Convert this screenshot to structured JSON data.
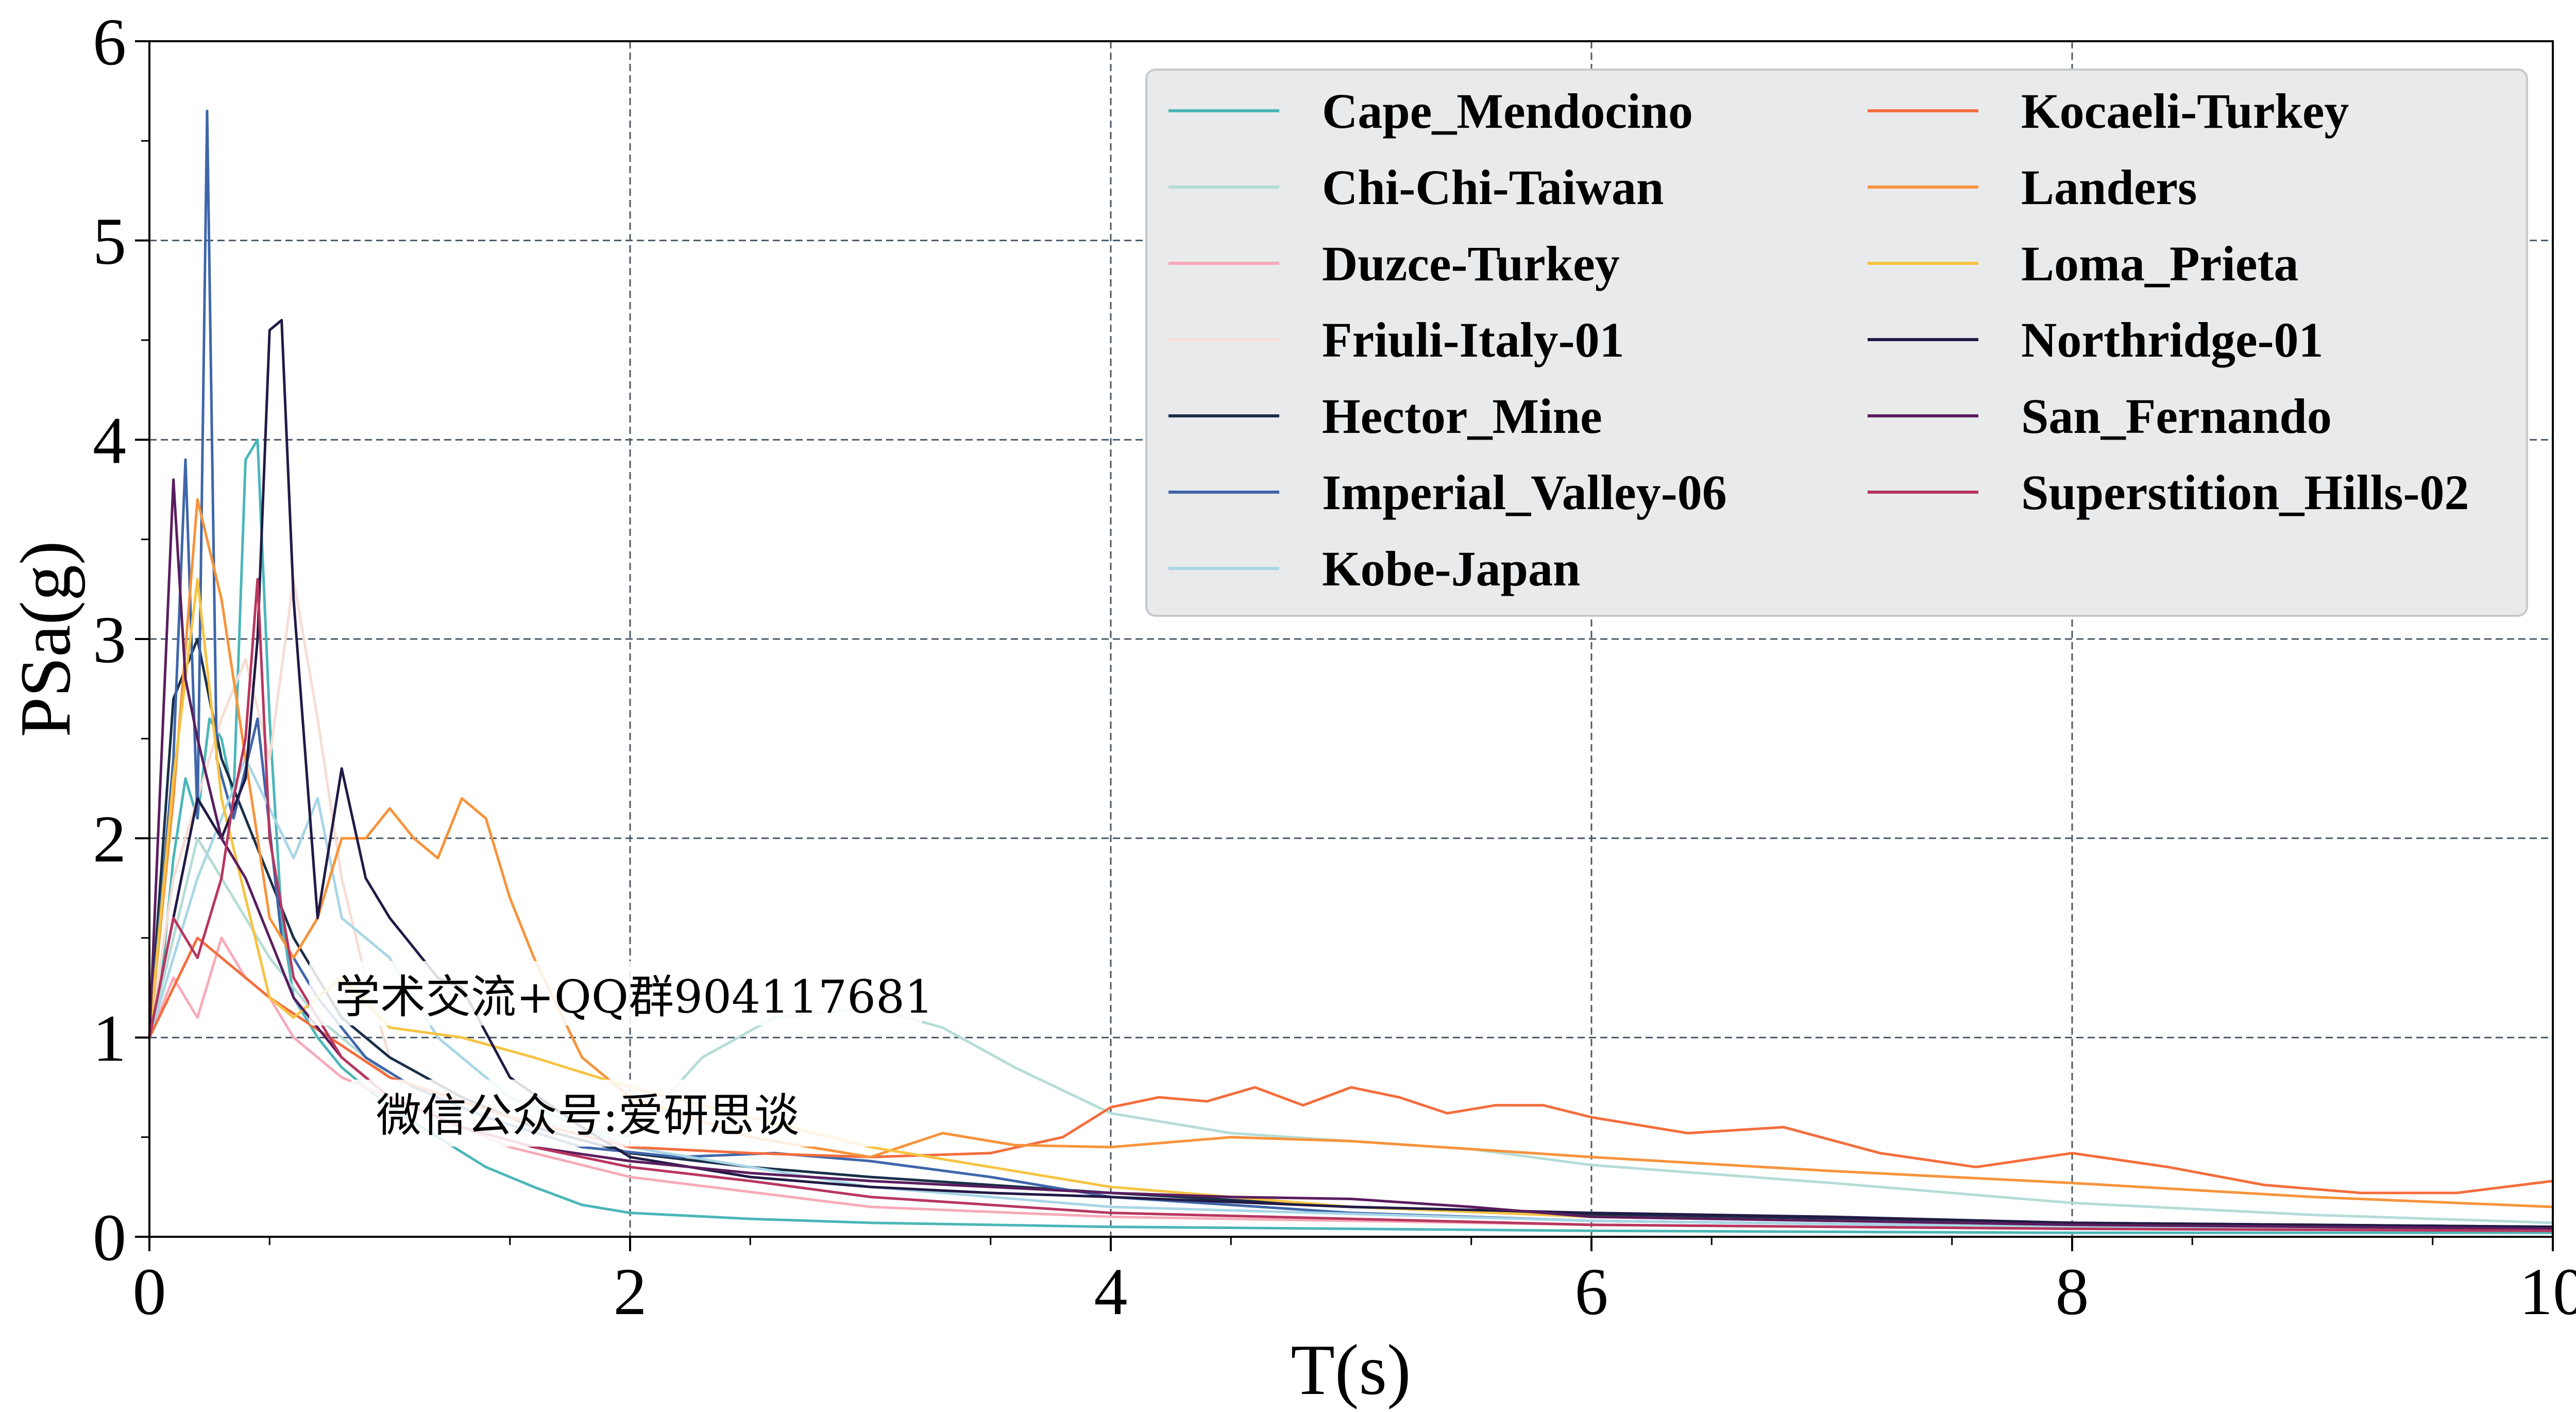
{
  "chart_data": {
    "type": "line",
    "xlabel": "T(s)",
    "ylabel": "PSa(g)",
    "xlim": [
      0,
      10
    ],
    "ylim": [
      0,
      6
    ],
    "xticks": [
      0,
      2,
      4,
      6,
      8,
      10
    ],
    "yticks": [
      0,
      1,
      2,
      3,
      4,
      5,
      6
    ],
    "grid": true,
    "legend_position": "top-right",
    "series": [
      {
        "name": "Cape_Mendocino",
        "color": "#4bb6b8",
        "x": [
          0,
          0.05,
          0.1,
          0.15,
          0.2,
          0.25,
          0.3,
          0.35,
          0.4,
          0.45,
          0.5,
          0.55,
          0.6,
          0.7,
          0.8,
          0.9,
          1.0,
          1.2,
          1.4,
          1.6,
          1.8,
          2.0,
          2.5,
          3.0,
          4.0,
          5.0,
          6.0,
          8.0,
          10.0
        ],
        "y": [
          1.0,
          1.3,
          1.9,
          2.3,
          2.1,
          2.6,
          2.5,
          2.2,
          3.9,
          4.0,
          2.6,
          1.6,
          1.2,
          1.0,
          0.85,
          0.75,
          0.65,
          0.5,
          0.35,
          0.25,
          0.16,
          0.12,
          0.09,
          0.07,
          0.05,
          0.04,
          0.03,
          0.02,
          0.02
        ]
      },
      {
        "name": "Chi-Chi-Taiwan",
        "color": "#b4dcd6",
        "x": [
          0,
          0.1,
          0.2,
          0.3,
          0.4,
          0.5,
          0.7,
          1.0,
          1.5,
          2.0,
          2.3,
          2.6,
          3.0,
          3.3,
          3.6,
          4.0,
          4.5,
          5.0,
          5.5,
          6.0,
          7.0,
          8.0,
          9.0,
          10.0
        ],
        "y": [
          1.0,
          1.5,
          2.0,
          1.8,
          1.6,
          1.4,
          1.1,
          0.8,
          0.6,
          0.5,
          0.9,
          1.1,
          1.15,
          1.05,
          0.85,
          0.62,
          0.52,
          0.48,
          0.44,
          0.36,
          0.27,
          0.17,
          0.11,
          0.07
        ]
      },
      {
        "name": "Duzce-Turkey",
        "color": "#f7aab8",
        "x": [
          0,
          0.1,
          0.2,
          0.3,
          0.4,
          0.5,
          0.6,
          0.8,
          1.0,
          1.2,
          1.5,
          2.0,
          3.0,
          4.0,
          6.0,
          8.0,
          10.0
        ],
        "y": [
          1.0,
          1.3,
          1.1,
          1.5,
          1.3,
          1.2,
          1.0,
          0.8,
          0.7,
          0.6,
          0.45,
          0.3,
          0.15,
          0.1,
          0.06,
          0.04,
          0.03
        ]
      },
      {
        "name": "Friuli-Italy-01",
        "color": "#f6ddd5",
        "x": [
          0,
          0.1,
          0.2,
          0.3,
          0.4,
          0.5,
          0.6,
          0.7,
          0.8,
          0.9,
          1.0
        ],
        "y": [
          1.0,
          1.8,
          2.2,
          2.6,
          2.9,
          2.4,
          3.3,
          2.6,
          1.8,
          1.3,
          0.9
        ]
      },
      {
        "name": "Hector_Mine",
        "color": "#1a2f48",
        "x": [
          0,
          0.1,
          0.2,
          0.3,
          0.4,
          0.5,
          0.6,
          0.8,
          1.0,
          1.3,
          1.6,
          2.0,
          2.5,
          3.0,
          4.0,
          5.0,
          6.0,
          8.0,
          10.0
        ],
        "y": [
          1.0,
          2.7,
          3.0,
          2.4,
          2.1,
          1.8,
          1.5,
          1.1,
          0.9,
          0.7,
          0.55,
          0.42,
          0.35,
          0.3,
          0.22,
          0.15,
          0.11,
          0.07,
          0.05
        ]
      },
      {
        "name": "Imperial_Valley-06",
        "color": "#3f66aa",
        "x": [
          0,
          0.1,
          0.15,
          0.2,
          0.24,
          0.28,
          0.35,
          0.45,
          0.55,
          0.7,
          0.9,
          1.1,
          1.4,
          1.8,
          2.2,
          2.6,
          3.0,
          3.5,
          4.0,
          5.0,
          6.0,
          8.0,
          10.0
        ],
        "y": [
          1.0,
          2.4,
          3.9,
          2.1,
          5.65,
          2.4,
          2.1,
          2.6,
          1.5,
          1.2,
          0.9,
          0.75,
          0.6,
          0.45,
          0.4,
          0.42,
          0.38,
          0.3,
          0.2,
          0.12,
          0.08,
          0.05,
          0.03
        ]
      },
      {
        "name": "Kobe-Japan",
        "color": "#a8d6e6",
        "x": [
          0,
          0.2,
          0.4,
          0.6,
          0.7,
          0.8,
          1.0,
          1.2,
          1.5,
          2.0,
          3.0,
          4.0,
          6.0,
          8.0,
          10.0
        ],
        "y": [
          1.0,
          1.8,
          2.4,
          1.9,
          2.2,
          1.6,
          1.4,
          1.0,
          0.7,
          0.45,
          0.25,
          0.15,
          0.08,
          0.05,
          0.03
        ]
      },
      {
        "name": "Kocaeli-Turkey",
        "color": "#f46d3d",
        "x": [
          0,
          0.2,
          0.5,
          1.0,
          1.5,
          2.0,
          2.5,
          3.0,
          3.5,
          3.8,
          4.0,
          4.2,
          4.4,
          4.6,
          4.8,
          5.0,
          5.2,
          5.4,
          5.6,
          5.8,
          6.0,
          6.4,
          6.8,
          7.2,
          7.6,
          8.0,
          8.4,
          8.8,
          9.2,
          9.6,
          10.0
        ],
        "y": [
          1.0,
          1.5,
          1.2,
          0.8,
          0.6,
          0.45,
          0.42,
          0.4,
          0.42,
          0.5,
          0.65,
          0.7,
          0.68,
          0.75,
          0.66,
          0.75,
          0.7,
          0.62,
          0.66,
          0.66,
          0.6,
          0.52,
          0.55,
          0.42,
          0.35,
          0.42,
          0.35,
          0.26,
          0.22,
          0.22,
          0.28
        ]
      },
      {
        "name": "Landers",
        "color": "#f7933a",
        "x": [
          0,
          0.1,
          0.2,
          0.3,
          0.4,
          0.5,
          0.6,
          0.7,
          0.8,
          0.9,
          1.0,
          1.1,
          1.2,
          1.3,
          1.4,
          1.5,
          1.6,
          1.8,
          2.0,
          2.5,
          3.0,
          3.3,
          3.6,
          4.0,
          4.5,
          5.0,
          6.0,
          7.0,
          8.0,
          9.0,
          10.0
        ],
        "y": [
          1.0,
          2.2,
          3.7,
          3.2,
          2.4,
          1.6,
          1.4,
          1.6,
          2.0,
          2.0,
          2.15,
          2.0,
          1.9,
          2.2,
          2.1,
          1.7,
          1.4,
          0.9,
          0.7,
          0.5,
          0.4,
          0.52,
          0.46,
          0.45,
          0.5,
          0.48,
          0.4,
          0.33,
          0.27,
          0.2,
          0.15
        ]
      },
      {
        "name": "Loma_Prieta",
        "color": "#f6c342",
        "x": [
          0,
          0.1,
          0.2,
          0.3,
          0.4,
          0.5,
          0.6,
          0.8,
          1.0,
          1.3,
          1.6,
          2.0,
          2.5,
          3.0,
          3.5,
          4.0,
          5.0,
          6.0,
          8.0,
          10.0
        ],
        "y": [
          1.0,
          2.3,
          3.3,
          2.2,
          1.7,
          1.2,
          1.1,
          1.3,
          1.05,
          1.0,
          0.9,
          0.75,
          0.6,
          0.45,
          0.35,
          0.25,
          0.15,
          0.1,
          0.06,
          0.04
        ]
      },
      {
        "name": "Northridge-01",
        "color": "#221a45",
        "x": [
          0,
          0.1,
          0.2,
          0.3,
          0.4,
          0.45,
          0.5,
          0.55,
          0.6,
          0.7,
          0.8,
          0.9,
          1.0,
          1.1,
          1.2,
          1.3,
          1.5,
          1.8,
          2.0,
          2.5,
          3.0,
          3.5,
          4.0,
          5.0,
          6.0,
          7.0,
          8.0,
          10.0
        ],
        "y": [
          1.0,
          1.6,
          2.2,
          2.0,
          2.3,
          3.0,
          4.55,
          4.6,
          3.2,
          1.6,
          2.35,
          1.8,
          1.6,
          1.45,
          1.3,
          1.25,
          0.8,
          0.55,
          0.4,
          0.3,
          0.25,
          0.22,
          0.2,
          0.15,
          0.12,
          0.1,
          0.07,
          0.05
        ]
      },
      {
        "name": "San_Fernando",
        "color": "#5a1d5e",
        "x": [
          0,
          0.1,
          0.15,
          0.2,
          0.3,
          0.4,
          0.5,
          0.6,
          0.8,
          1.0,
          1.3,
          1.6,
          2.0,
          2.5,
          3.0,
          3.5,
          4.0,
          4.5,
          5.0,
          5.5,
          6.0,
          8.0,
          10.0
        ],
        "y": [
          1.0,
          3.8,
          2.8,
          2.5,
          2.0,
          1.8,
          1.5,
          1.2,
          0.9,
          0.7,
          0.55,
          0.45,
          0.38,
          0.32,
          0.28,
          0.25,
          0.22,
          0.2,
          0.19,
          0.15,
          0.1,
          0.06,
          0.04
        ]
      },
      {
        "name": "Superstition_Hills-02",
        "color": "#b8365f",
        "x": [
          0,
          0.1,
          0.2,
          0.3,
          0.35,
          0.4,
          0.45,
          0.5,
          0.6,
          0.8,
          1.0,
          1.3,
          1.6,
          2.0,
          2.5,
          3.0,
          4.0,
          6.0,
          8.0,
          10.0
        ],
        "y": [
          1.0,
          1.6,
          1.4,
          1.8,
          2.2,
          2.5,
          3.3,
          2.0,
          1.3,
          0.9,
          0.7,
          0.55,
          0.45,
          0.35,
          0.28,
          0.2,
          0.12,
          0.06,
          0.04,
          0.03
        ]
      }
    ]
  },
  "watermark": {
    "line1": "学术交流+QQ群904117681",
    "line2": "微信公众号:爱研思谈"
  }
}
